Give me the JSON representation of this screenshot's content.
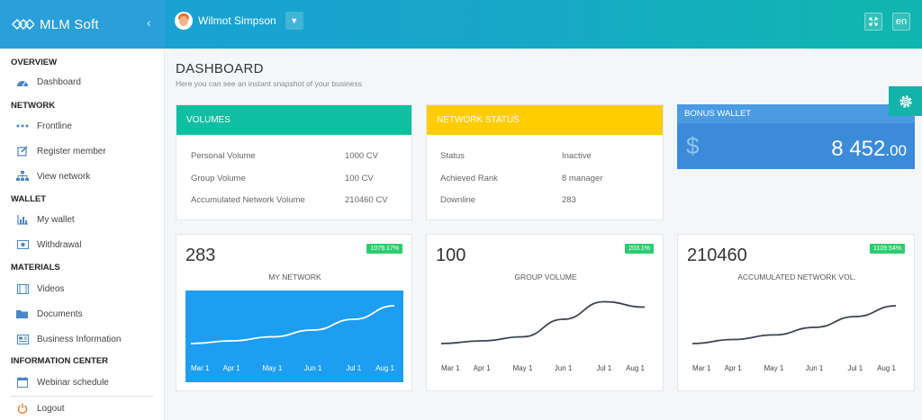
{
  "app": {
    "logo_text": "MLM Soft",
    "user_name": "Wilmot Simpson",
    "lang": "en"
  },
  "sidebar": {
    "sections": [
      {
        "label": "OVERVIEW"
      },
      {
        "label": "NETWORK"
      },
      {
        "label": "WALLET"
      },
      {
        "label": "MATERIALS"
      },
      {
        "label": "INFORMATION CENTER"
      }
    ],
    "items": [
      {
        "label": "Dashboard",
        "icon": "dashboard-icon"
      },
      {
        "label": "Frontline",
        "icon": "dots-icon"
      },
      {
        "label": "Register member",
        "icon": "edit-icon"
      },
      {
        "label": "View network",
        "icon": "sitemap-icon"
      },
      {
        "label": "My wallet",
        "icon": "bar-chart-icon"
      },
      {
        "label": "Withdrawal",
        "icon": "money-icon"
      },
      {
        "label": "Videos",
        "icon": "film-icon"
      },
      {
        "label": "Documents",
        "icon": "folder-icon"
      },
      {
        "label": "Business Information",
        "icon": "newspaper-icon"
      },
      {
        "label": "Webinar schedule",
        "icon": "calendar-icon"
      },
      {
        "label": "Logout",
        "icon": "power-icon"
      }
    ]
  },
  "page": {
    "title": "DASHBOARD",
    "subtitle": "Here you can see an instant snapshot of your business"
  },
  "volumes": {
    "title": "VOLUMES",
    "color": "#0fbfa1",
    "rows": [
      {
        "label": "Personal Volume",
        "value": "1000 CV"
      },
      {
        "label": "Group Volume",
        "value": "100 CV"
      },
      {
        "label": "Accumulated Network Volume",
        "value": "210460 CV"
      }
    ]
  },
  "network_status": {
    "title": "NETWORK STATUS",
    "color": "#ffcc00",
    "rows": [
      {
        "label": "Status",
        "value": "Inactive"
      },
      {
        "label": "Achieved Rank",
        "value": "8 manager"
      },
      {
        "label": "Downline",
        "value": "283"
      }
    ]
  },
  "bonus_wallet": {
    "title": "BONUS WALLET",
    "currency": "$",
    "amount_int": "8 452",
    "amount_dec": ".00"
  },
  "stats": [
    {
      "value": "283",
      "badge": "1079.17%",
      "label": "MY NETWORK"
    },
    {
      "value": "100",
      "badge": "203.1%",
      "label": "GROUP VOLUME"
    },
    {
      "value": "210460",
      "badge": "1109.54%",
      "label": "ACCUMULATED NETWORK VOL."
    }
  ],
  "chart_data": [
    {
      "type": "line",
      "categories": [
        "Mar 1",
        "Apr 1",
        "May 1",
        "Jun 1",
        "Jul 1",
        "Aug 1"
      ],
      "values": [
        10,
        20,
        35,
        60,
        100,
        150
      ],
      "ylim": [
        0,
        180
      ],
      "grid": false
    },
    {
      "type": "line",
      "categories": [
        "Mar 1",
        "Apr 1",
        "May 1",
        "Jun 1",
        "Jul 1",
        "Aug 1"
      ],
      "values": [
        10,
        20,
        35,
        100,
        165,
        145
      ],
      "ylim": [
        0,
        180
      ],
      "grid": false
    },
    {
      "type": "line",
      "categories": [
        "Mar 1",
        "Apr 1",
        "May 1",
        "Jun 1",
        "Jul 1",
        "Aug 1"
      ],
      "values": [
        10,
        25,
        42,
        70,
        110,
        150
      ],
      "ylim": [
        0,
        180
      ],
      "grid": false
    }
  ]
}
